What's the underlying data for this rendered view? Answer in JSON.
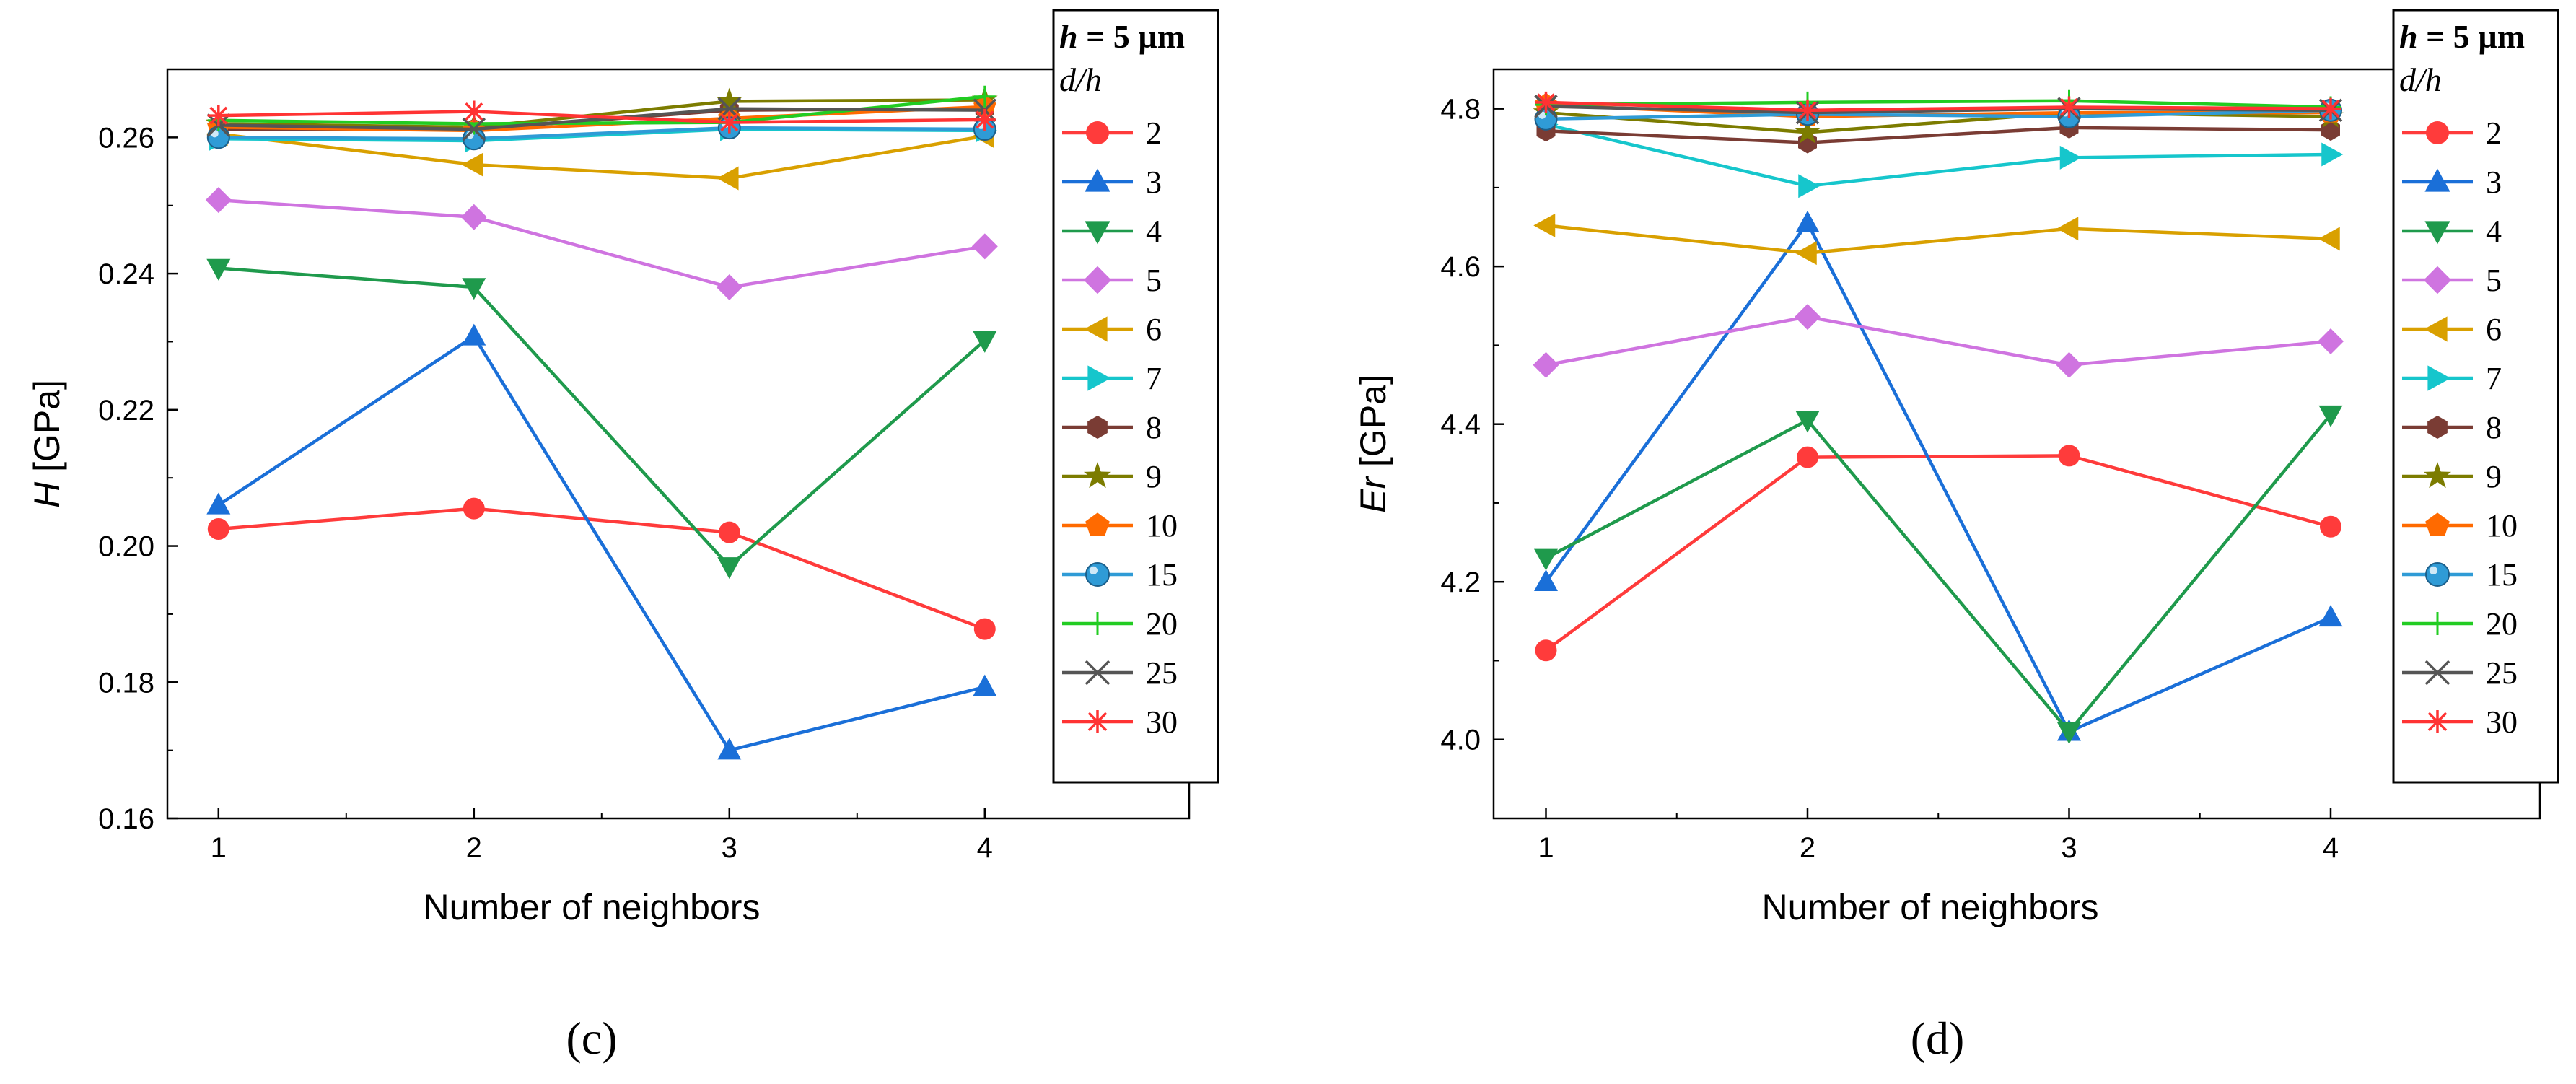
{
  "series_style": [
    {
      "color": "#ff3b3b",
      "marker": "circle"
    },
    {
      "color": "#1a6fd8",
      "marker": "triangle-up"
    },
    {
      "color": "#1f9a4c",
      "marker": "triangle-down"
    },
    {
      "color": "#cf74e0",
      "marker": "diamond"
    },
    {
      "color": "#d9a000",
      "marker": "triangle-left"
    },
    {
      "color": "#16c6cc",
      "marker": "triangle-right"
    },
    {
      "color": "#7a3c34",
      "marker": "hexagon"
    },
    {
      "color": "#7c7c00",
      "marker": "star"
    },
    {
      "color": "#ff6a00",
      "marker": "pentagon"
    },
    {
      "color": "#2f9bd6",
      "marker": "sphere"
    },
    {
      "color": "#22cc22",
      "marker": "plus"
    },
    {
      "color": "#555555",
      "marker": "x"
    },
    {
      "color": "#ff3333",
      "marker": "asterisk"
    }
  ],
  "chart_data": [
    {
      "type": "line",
      "caption": "(c)",
      "x": [
        1,
        2,
        3,
        4
      ],
      "xlabel": "Number of neighbors",
      "ylabel_italic": "H",
      "ylabel_unit": " [GPa]",
      "xlim": [
        0.8,
        4.8
      ],
      "ylim": [
        0.16,
        0.27
      ],
      "yticks": [
        0.16,
        0.18,
        0.2,
        0.22,
        0.24,
        0.26
      ],
      "ytick_labels": [
        "0.16",
        "0.18",
        "0.20",
        "0.22",
        "0.24",
        "0.26"
      ],
      "legend": {
        "header_italic": "h",
        "header_rest": " = 5 µm",
        "subheader": "d/h",
        "placement": "right-outside"
      },
      "series": [
        {
          "name": "2",
          "values": [
            0.2025,
            0.2055,
            0.202,
            0.1878
          ]
        },
        {
          "name": "3",
          "values": [
            0.206,
            0.2308,
            0.17,
            0.1793
          ]
        },
        {
          "name": "4",
          "values": [
            0.2408,
            0.238,
            0.197,
            0.2302
          ]
        },
        {
          "name": "5",
          "values": [
            0.2508,
            0.2483,
            0.238,
            0.244
          ]
        },
        {
          "name": "6",
          "values": [
            0.2605,
            0.256,
            0.254,
            0.2602
          ]
        },
        {
          "name": "7",
          "values": [
            0.2598,
            0.2595,
            0.2612,
            0.261
          ]
        },
        {
          "name": "8",
          "values": [
            0.2612,
            0.2612,
            0.264,
            0.2642
          ]
        },
        {
          "name": "9",
          "values": [
            0.262,
            0.2615,
            0.2653,
            0.2655
          ]
        },
        {
          "name": "10",
          "values": [
            0.2615,
            0.261,
            0.2628,
            0.2645
          ]
        },
        {
          "name": "15",
          "values": [
            0.26,
            0.2598,
            0.2614,
            0.2612
          ]
        },
        {
          "name": "20",
          "values": [
            0.2625,
            0.262,
            0.2622,
            0.266
          ]
        },
        {
          "name": "25",
          "values": [
            0.2618,
            0.2612,
            0.2642,
            0.264
          ]
        },
        {
          "name": "30",
          "values": [
            0.2632,
            0.2638,
            0.2622,
            0.2626
          ]
        }
      ]
    },
    {
      "type": "line",
      "caption": "(d)",
      "x": [
        1,
        2,
        3,
        4
      ],
      "xlabel": "Number of neighbors",
      "ylabel_italic": "Er",
      "ylabel_unit": " [GPa]",
      "xlim": [
        0.8,
        4.8
      ],
      "ylim": [
        3.9,
        4.85
      ],
      "yticks": [
        4.0,
        4.2,
        4.4,
        4.6,
        4.8
      ],
      "ytick_labels": [
        "4.0",
        "4.2",
        "4.4",
        "4.6",
        "4.8"
      ],
      "legend": {
        "header_italic": "h",
        "header_rest": " = 5 µm",
        "subheader": "d/h",
        "placement": "right-outside"
      },
      "series": [
        {
          "name": "2",
          "values": [
            4.113,
            4.358,
            4.36,
            4.27
          ]
        },
        {
          "name": "3",
          "values": [
            4.2,
            4.655,
            4.01,
            4.155
          ]
        },
        {
          "name": "4",
          "values": [
            4.23,
            4.405,
            4.01,
            4.412
          ]
        },
        {
          "name": "5",
          "values": [
            4.475,
            4.536,
            4.475,
            4.505
          ]
        },
        {
          "name": "6",
          "values": [
            4.652,
            4.617,
            4.648,
            4.635
          ]
        },
        {
          "name": "7",
          "values": [
            4.78,
            4.702,
            4.738,
            4.742
          ]
        },
        {
          "name": "8",
          "values": [
            4.772,
            4.757,
            4.776,
            4.773
          ]
        },
        {
          "name": "9",
          "values": [
            4.795,
            4.77,
            4.795,
            4.79
          ]
        },
        {
          "name": "10",
          "values": [
            4.805,
            4.79,
            4.795,
            4.795
          ]
        },
        {
          "name": "15",
          "values": [
            4.787,
            4.793,
            4.79,
            4.798
          ]
        },
        {
          "name": "20",
          "values": [
            4.805,
            4.808,
            4.81,
            4.802
          ]
        },
        {
          "name": "25",
          "values": [
            4.803,
            4.795,
            4.8,
            4.798
          ]
        },
        {
          "name": "30",
          "values": [
            4.808,
            4.798,
            4.802,
            4.8
          ]
        }
      ]
    }
  ]
}
